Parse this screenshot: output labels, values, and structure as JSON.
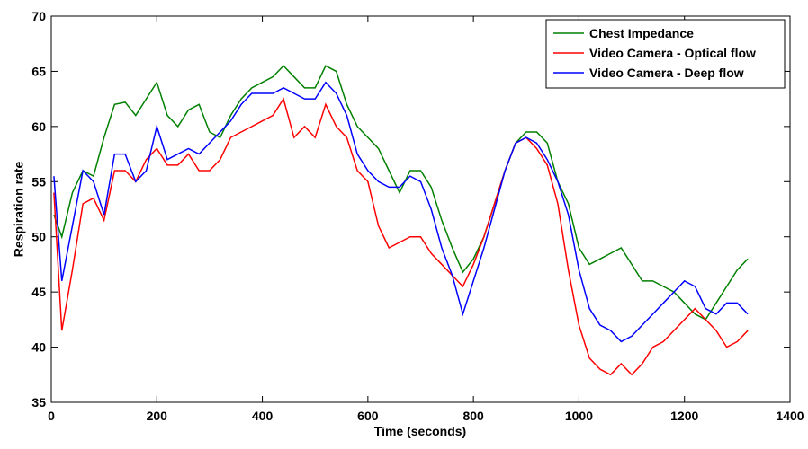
{
  "chart_data": {
    "type": "line",
    "xlabel": "Time (seconds)",
    "ylabel": "Respiration rate",
    "x": [
      5,
      20,
      40,
      60,
      80,
      100,
      120,
      140,
      160,
      180,
      200,
      220,
      240,
      260,
      280,
      300,
      320,
      340,
      360,
      380,
      400,
      420,
      440,
      460,
      480,
      500,
      520,
      540,
      560,
      580,
      600,
      620,
      640,
      660,
      680,
      700,
      720,
      740,
      760,
      780,
      800,
      820,
      840,
      860,
      880,
      900,
      920,
      940,
      960,
      980,
      1000,
      1020,
      1040,
      1060,
      1080,
      1100,
      1120,
      1140,
      1160,
      1180,
      1200,
      1220,
      1240,
      1260,
      1280,
      1300,
      1320
    ],
    "series": [
      {
        "name": "Chest Impedance",
        "color": "#008000",
        "values": [
          52,
          50,
          54,
          56,
          55.5,
          59,
          62,
          62.2,
          61,
          62.5,
          64,
          61,
          60,
          61.5,
          62,
          59.5,
          59,
          61,
          62.5,
          63.5,
          64,
          64.5,
          65.5,
          64.5,
          63.5,
          63.5,
          65.5,
          65,
          62,
          60,
          59,
          58,
          56,
          54,
          56,
          56,
          54.5,
          51.5,
          49,
          46.8,
          48,
          50,
          53,
          56,
          58.5,
          59.5,
          59.5,
          58.5,
          55,
          53,
          49,
          47.5,
          48,
          48.5,
          49,
          47.5,
          46,
          46,
          45.5,
          45,
          44,
          43,
          42.5,
          44,
          45.5,
          47,
          48
        ]
      },
      {
        "name": "Video Camera - Optical flow",
        "color": "#ff0000",
        "values": [
          54,
          41.5,
          47,
          53,
          53.5,
          51.5,
          56,
          56,
          55,
          57,
          58,
          56.5,
          56.5,
          57.5,
          56,
          56,
          57,
          59,
          59.5,
          60,
          60.5,
          61,
          62.5,
          59,
          60,
          59,
          62,
          60,
          59,
          56,
          55,
          51,
          49,
          49.5,
          50,
          50,
          48.5,
          47.5,
          46.5,
          45.5,
          47.5,
          50,
          53,
          56,
          58.5,
          59,
          58,
          56.5,
          53,
          47,
          42,
          39,
          38,
          37.5,
          38.5,
          37.5,
          38.5,
          40,
          40.5,
          41.5,
          42.5,
          43.5,
          42.5,
          41.5,
          40,
          40.5,
          41.5
        ]
      },
      {
        "name": "Video Camera - Deep flow",
        "color": "#0000ff",
        "values": [
          55.5,
          46,
          51,
          56,
          55,
          52,
          57.5,
          57.5,
          55,
          56,
          60,
          57,
          57.5,
          58,
          57.5,
          58.5,
          59.5,
          60.5,
          62,
          63,
          63,
          63,
          63.5,
          63,
          62.5,
          62.5,
          64,
          63,
          61,
          57.5,
          56,
          55,
          54.5,
          54.5,
          55.5,
          55,
          52.5,
          49,
          46.5,
          43,
          46,
          49,
          52.5,
          56,
          58.5,
          59,
          58.5,
          57,
          55,
          52,
          47,
          43.5,
          42,
          41.5,
          40.5,
          41,
          42,
          43,
          44,
          45,
          46,
          45.5,
          43.5,
          43,
          44,
          44,
          43
        ]
      }
    ],
    "xlim": [
      0,
      1400
    ],
    "xticks": [
      0,
      200,
      400,
      600,
      800,
      1000,
      1200,
      1400
    ],
    "ylim": [
      35,
      70
    ],
    "yticks": [
      35,
      40,
      45,
      50,
      55,
      60,
      65,
      70
    ],
    "legend": "upper right"
  }
}
